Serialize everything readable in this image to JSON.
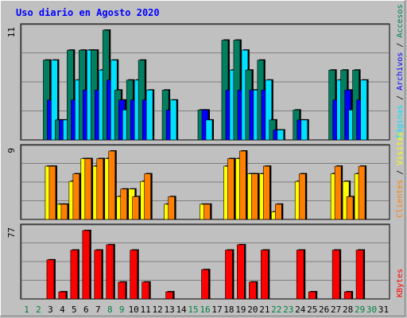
{
  "chart_data": {
    "type": "bar",
    "title": "Uso diario en Agosto 2020",
    "categories": [
      "1",
      "2",
      "3",
      "4",
      "5",
      "6",
      "7",
      "8",
      "9",
      "10",
      "11",
      "12",
      "13",
      "14",
      "15",
      "16",
      "17",
      "18",
      "19",
      "20",
      "21",
      "22",
      "23",
      "24",
      "25",
      "26",
      "27",
      "28",
      "29",
      "30",
      "31"
    ],
    "weekend_days": [
      "1",
      "2",
      "8",
      "9",
      "15",
      "16",
      "22",
      "23",
      "29",
      "30"
    ],
    "panels": [
      {
        "id": "top",
        "max_label": "11",
        "ylim": [
          0,
          11
        ],
        "right_labels": [
          "Accesos",
          "Archivos",
          "Páginas"
        ],
        "series": [
          {
            "name": "Accesos",
            "color": "#008060",
            "values": [
              0,
              0,
              8,
              2,
              9,
              9,
              9,
              11,
              5,
              6,
              8,
              0,
              5,
              0,
              0,
              3,
              0,
              10,
              10,
              7,
              8,
              2,
              0,
              3,
              0,
              0,
              7,
              7,
              7,
              0,
              0
            ]
          },
          {
            "name": "Archivos",
            "color": "#0000ff",
            "values": [
              0,
              0,
              4,
              2,
              4,
              5,
              5,
              6,
              4,
              4,
              4,
              0,
              3,
              0,
              0,
              3,
              0,
              5,
              5,
              5,
              5,
              1,
              0,
              2,
              0,
              0,
              4,
              5,
              4,
              0,
              0
            ]
          },
          {
            "name": "Páginas",
            "color": "#00e0ff",
            "values": [
              0,
              0,
              8,
              2,
              6,
              9,
              7,
              8,
              3,
              6,
              5,
              0,
              4,
              0,
              0,
              2,
              0,
              7,
              9,
              5,
              6,
              1,
              0,
              2,
              0,
              0,
              6,
              3,
              6,
              0,
              0
            ]
          }
        ]
      },
      {
        "id": "middle",
        "max_label": "9",
        "ylim": [
          0,
          9
        ],
        "right_labels": [
          "Visitas",
          "Clientes"
        ],
        "series": [
          {
            "name": "Visitas",
            "color": "#ffff00",
            "values": [
              0,
              0,
              7,
              2,
              5,
              8,
              7,
              8,
              3,
              4,
              5,
              0,
              2,
              0,
              0,
              2,
              0,
              7,
              8,
              6,
              6,
              1,
              0,
              5,
              0,
              0,
              6,
              5,
              6,
              0,
              0
            ]
          },
          {
            "name": "Clientes",
            "color": "#ff8000",
            "values": [
              0,
              0,
              7,
              2,
              6,
              8,
              8,
              9,
              4,
              3,
              6,
              0,
              3,
              0,
              0,
              2,
              0,
              8,
              9,
              6,
              7,
              2,
              0,
              6,
              0,
              0,
              7,
              3,
              7,
              0,
              0
            ]
          }
        ]
      },
      {
        "id": "bottom",
        "max_label": "77",
        "ylim": [
          0,
          77
        ],
        "right_labels": [
          "KBytes"
        ],
        "series": [
          {
            "name": "KBytes",
            "color": "#ff0000",
            "values": [
              0,
              0,
              44,
              8,
              55,
              77,
              55,
              61,
              19,
              55,
              19,
              0,
              8,
              0,
              0,
              33,
              0,
              55,
              61,
              19,
              55,
              0,
              0,
              55,
              8,
              0,
              55,
              8,
              55,
              0,
              0
            ]
          }
        ]
      }
    ],
    "colors": {
      "background": "#c0c0c0",
      "plot_background": "#c0c0c0",
      "title": "#0000ff",
      "weekday_label": "#000000",
      "weekend_label": "#008040",
      "label_separator": "#000000",
      "bar_shadow": "#000000",
      "bar_outline": "#000000",
      "gridline": "#808080"
    }
  }
}
